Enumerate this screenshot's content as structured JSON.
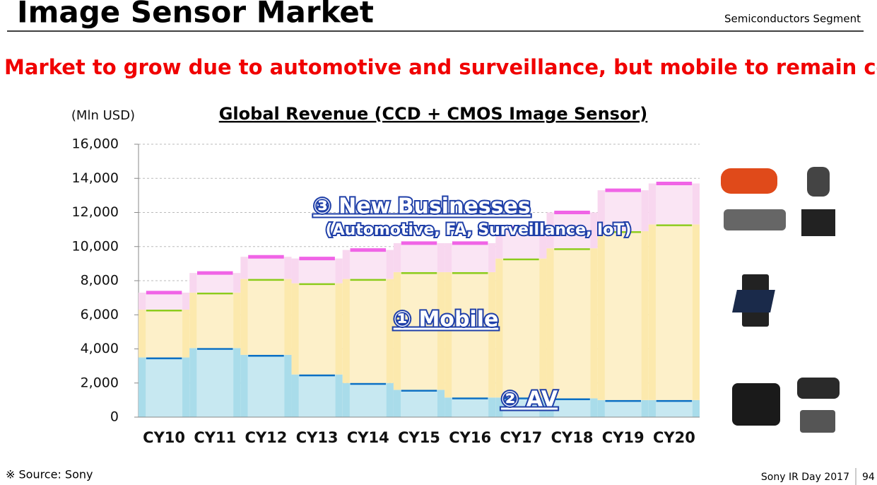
{
  "header": {
    "title": "Image Sensor Market",
    "segment": "Semiconductors Segment"
  },
  "headline": "Market to grow due to automotive and surveillance, but mobile to remain core",
  "footer": {
    "source": "※ Source: Sony",
    "event": "Sony IR Day 2017",
    "page": "94"
  },
  "chart_data": {
    "type": "bar",
    "stacked": true,
    "title": "Global Revenue (CCD + CMOS Image Sensor)",
    "y_label": "(Mln USD)",
    "categories": [
      "CY10",
      "CY11",
      "CY12",
      "CY13",
      "CY14",
      "CY15",
      "CY16",
      "CY17",
      "CY18",
      "CY19",
      "CY20"
    ],
    "series": [
      {
        "name": "② AV",
        "color": "#a9dcea",
        "edge_color": "#0a6fc4",
        "values": [
          3500,
          4050,
          3650,
          2500,
          2000,
          1600,
          1150,
          1150,
          1100,
          1000,
          1000
        ]
      },
      {
        "name": "① Mobile",
        "color": "#fce9ad",
        "edge_color": "#8ccc1c",
        "values": [
          2800,
          3250,
          4450,
          5350,
          6100,
          6900,
          7350,
          8150,
          8800,
          9900,
          10300
        ]
      },
      {
        "name": "③ New Businesses",
        "color": "#f8d7ef",
        "edge_color": "#f064e6",
        "values": [
          1000,
          1150,
          1300,
          1450,
          1700,
          1700,
          1700,
          1800,
          2100,
          2400,
          2400
        ]
      }
    ],
    "annotations": [
      "(Automotive, FA, Surveillance, IoT)"
    ],
    "ylim": [
      0,
      16000
    ],
    "yticks": [
      0,
      {
        "value": 2000,
        "label": "2,000"
      },
      {
        "value": 4000,
        "label": "4,000"
      },
      {
        "value": 6000,
        "label": "6,000"
      },
      {
        "value": 8000,
        "label": "8,000"
      },
      {
        "value": 10000,
        "label": "10,000"
      },
      {
        "value": 12000,
        "label": "12,000"
      },
      {
        "value": 14000,
        "label": "14,000"
      },
      {
        "value": 16000,
        "label": "16,000"
      }
    ],
    "grid": true
  }
}
